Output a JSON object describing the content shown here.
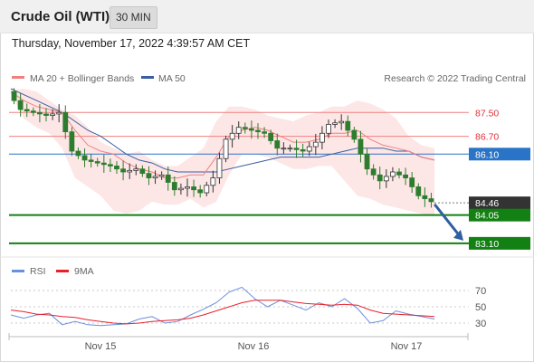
{
  "header": {
    "title": "Crude Oil (WTI)",
    "interval": "30 MIN"
  },
  "timestamp": "Thursday, November 17, 2022 4:39:57 AM CET",
  "legend": {
    "ma20_label": "MA 20 + Bollinger Bands",
    "ma50_label": "MA 50",
    "credit": "Research © 2022 Trading Central",
    "rsi_label": "RSI",
    "rsi_ma_label": "9MA"
  },
  "colors": {
    "ma20": "#f08080",
    "bollinger_fill": "#fde3e3",
    "ma50": "#3a5fa0",
    "candle_up": "#ffffff",
    "candle_down": "#2e7d2e",
    "support": "#128012",
    "pivot": "#2a74c8",
    "resistance": "#f08080",
    "current_price": "#333333",
    "forecast_arrow": "#2f5f9f",
    "rsi": "#6a8fdc",
    "rsi_ma": "#e8202a"
  },
  "chart_data": [
    {
      "type": "candlestick",
      "title": "",
      "x_tick_labels": [
        "Nov 15",
        "Nov 16",
        "Nov 17"
      ],
      "ylim": [
        82.7,
        88.3
      ],
      "levels": [
        {
          "value": 87.5,
          "label": "87.50",
          "kind": "resistance"
        },
        {
          "value": 86.7,
          "label": "86.70",
          "kind": "resistance"
        },
        {
          "value": 86.1,
          "label": "86.10",
          "kind": "pivot"
        },
        {
          "value": 84.46,
          "label": "84.46",
          "kind": "last_price"
        },
        {
          "value": 84.05,
          "label": "84.05",
          "kind": "support"
        },
        {
          "value": 83.1,
          "label": "83.10",
          "kind": "support"
        }
      ],
      "forecast_target": 83.1,
      "series": [
        {
          "name": "MA 20 + Bollinger Bands",
          "mid": [
            88.2,
            87.9,
            87.7,
            87.6,
            87.5,
            86.9,
            86.4,
            86.2,
            86.1,
            85.8,
            85.6,
            85.5,
            85.3,
            85.3,
            85.4,
            85.4,
            86.0,
            86.7,
            86.9,
            87.0,
            86.9,
            86.7,
            86.5,
            86.5,
            86.6,
            86.8,
            86.8,
            86.9,
            86.6,
            86.4,
            86.3,
            86.2,
            86.0,
            85.9
          ],
          "upper": [
            88.25,
            88.3,
            88.2,
            87.9,
            87.6,
            87.4,
            87.0,
            86.5,
            86.3,
            86.1,
            86.2,
            85.9,
            85.7,
            85.7,
            86.0,
            86.3,
            87.2,
            87.7,
            87.7,
            87.6,
            87.4,
            87.3,
            87.2,
            87.4,
            87.5,
            87.7,
            87.7,
            87.9,
            87.8,
            87.6,
            87.3,
            86.7,
            86.4,
            86.3
          ],
          "lower": [
            88.15,
            87.3,
            87.0,
            86.8,
            86.3,
            85.3,
            85.0,
            84.7,
            84.2,
            84.1,
            84.2,
            84.5,
            84.4,
            84.4,
            84.6,
            84.3,
            84.5,
            85.4,
            86.1,
            86.1,
            86.0,
            85.8,
            85.6,
            85.6,
            85.7,
            85.7,
            85.2,
            84.7,
            84.6,
            84.4,
            84.3,
            84.2,
            84.1,
            84.0
          ]
        },
        {
          "name": "MA 50",
          "values": [
            88.3,
            88.1,
            87.9,
            87.7,
            87.5,
            87.2,
            86.9,
            86.7,
            86.4,
            86.1,
            85.9,
            85.8,
            85.6,
            85.5,
            85.5,
            85.5,
            85.5,
            85.6,
            85.7,
            85.8,
            85.9,
            86.0,
            86.0,
            86.0,
            86.0,
            86.1,
            86.2,
            86.3,
            86.3,
            86.3,
            86.2,
            86.2,
            86.0,
            85.9
          ]
        },
        {
          "name": "price",
          "values": [
            88.2,
            87.6,
            87.5,
            87.4,
            87.5,
            86.2,
            85.9,
            85.8,
            85.7,
            85.5,
            85.6,
            85.3,
            85.4,
            84.9,
            85.0,
            84.8,
            85.3,
            86.6,
            87.0,
            86.9,
            86.8,
            86.3,
            86.3,
            86.2,
            86.5,
            87.1,
            87.2,
            86.6,
            85.6,
            85.2,
            85.5,
            85.3,
            84.7,
            84.5
          ]
        }
      ]
    },
    {
      "type": "line",
      "title": "",
      "ylim": [
        20,
        80
      ],
      "y_ticks": [
        30,
        50,
        70
      ],
      "series": [
        {
          "name": "RSI",
          "values": [
            40,
            36,
            40,
            42,
            28,
            32,
            28,
            27,
            28,
            29,
            35,
            38,
            30,
            32,
            40,
            47,
            55,
            68,
            74,
            60,
            50,
            58,
            52,
            46,
            55,
            50,
            60,
            48,
            30,
            33,
            45,
            41,
            38,
            35
          ]
        },
        {
          "name": "9MA",
          "values": [
            46,
            44,
            41,
            40,
            38,
            37,
            34,
            32,
            30,
            29,
            30,
            32,
            33,
            34,
            36,
            40,
            45,
            50,
            55,
            58,
            58,
            58,
            56,
            54,
            53,
            52,
            53,
            52,
            46,
            42,
            41,
            40,
            39,
            38
          ]
        }
      ]
    }
  ]
}
